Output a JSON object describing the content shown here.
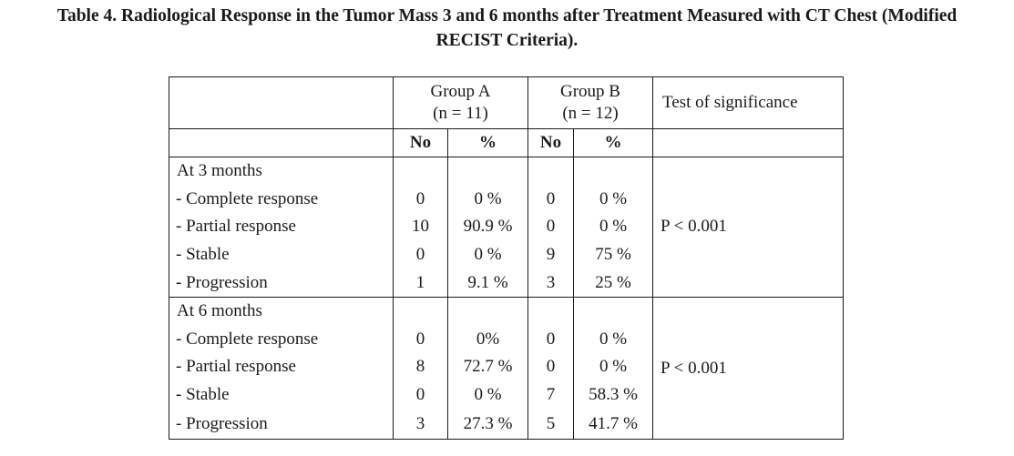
{
  "caption": {
    "line1": "Table 4. Radiological Response in the Tumor Mass 3 and 6 months after Treatment Measured with CT Chest (Modified",
    "line2": "RECIST Criteria)."
  },
  "header": {
    "group_a_line1": "Group A",
    "group_a_line2": "(n = 11)",
    "group_b_line1": "Group B",
    "group_b_line2": "(n = 12)",
    "test": "Test of significance",
    "no": "No",
    "pct": "%"
  },
  "sections": [
    {
      "label": "At 3 months",
      "significance": "P < 0.001",
      "rows": [
        {
          "label": "- Complete response",
          "a_no": "0",
          "a_pct": "0 %",
          "b_no": "0",
          "b_pct": "0 %"
        },
        {
          "label": "- Partial response",
          "a_no": "10",
          "a_pct": "90.9 %",
          "b_no": "0",
          "b_pct": "0 %"
        },
        {
          "label": "- Stable",
          "a_no": "0",
          "a_pct": "0 %",
          "b_no": "9",
          "b_pct": "75 %"
        },
        {
          "label": "- Progression",
          "a_no": "1",
          "a_pct": "9.1 %",
          "b_no": "3",
          "b_pct": "25 %"
        }
      ]
    },
    {
      "label": "At 6 months",
      "significance": "P < 0.001",
      "rows": [
        {
          "label": "- Complete response",
          "a_no": "0",
          "a_pct": "0%",
          "b_no": "0",
          "b_pct": "0 %"
        },
        {
          "label": "- Partial response",
          "a_no": "8",
          "a_pct": "72.7 %",
          "b_no": "0",
          "b_pct": "0 %"
        },
        {
          "label": "- Stable",
          "a_no": "0",
          "a_pct": "0 %",
          "b_no": "7",
          "b_pct": "58.3 %"
        },
        {
          "label": "- Progression",
          "a_no": "3",
          "a_pct": "27.3 %",
          "b_no": "5",
          "b_pct": "41.7 %"
        }
      ]
    }
  ]
}
